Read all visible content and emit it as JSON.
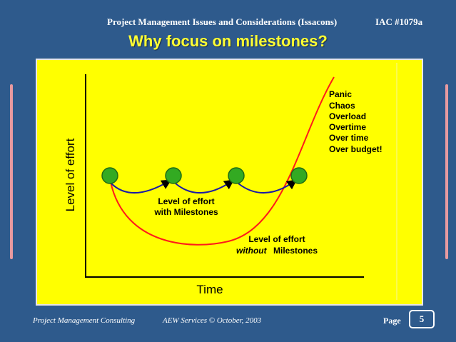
{
  "header": {
    "title": "Project Management Issues and Considerations (Issacons)",
    "id": "IAC #1079a"
  },
  "slide": {
    "title": "Why focus on milestones?"
  },
  "diagram": {
    "y_axis_label": "Level of effort",
    "x_axis_label": "Time",
    "milestone_count": 4,
    "with_label_line1": "Level of effort",
    "with_label_line2": "with Milestones",
    "without_label_line1": "Level of effort",
    "without_label_word": "without",
    "without_label_rest": "Milestones",
    "outcomes": [
      "Panic",
      "Chaos",
      "Overload",
      "Overtime",
      "Over time",
      "Over budget!"
    ],
    "colors": {
      "panel": "#ffff00",
      "milestone_fill": "#33aa22",
      "with_line": "#1a1aa6",
      "without_line": "#ff1a1a"
    }
  },
  "footer": {
    "left": "Project Management Consulting",
    "middle": "AEW Services © October, 2003",
    "page_label": "Page",
    "page_number": "5"
  }
}
